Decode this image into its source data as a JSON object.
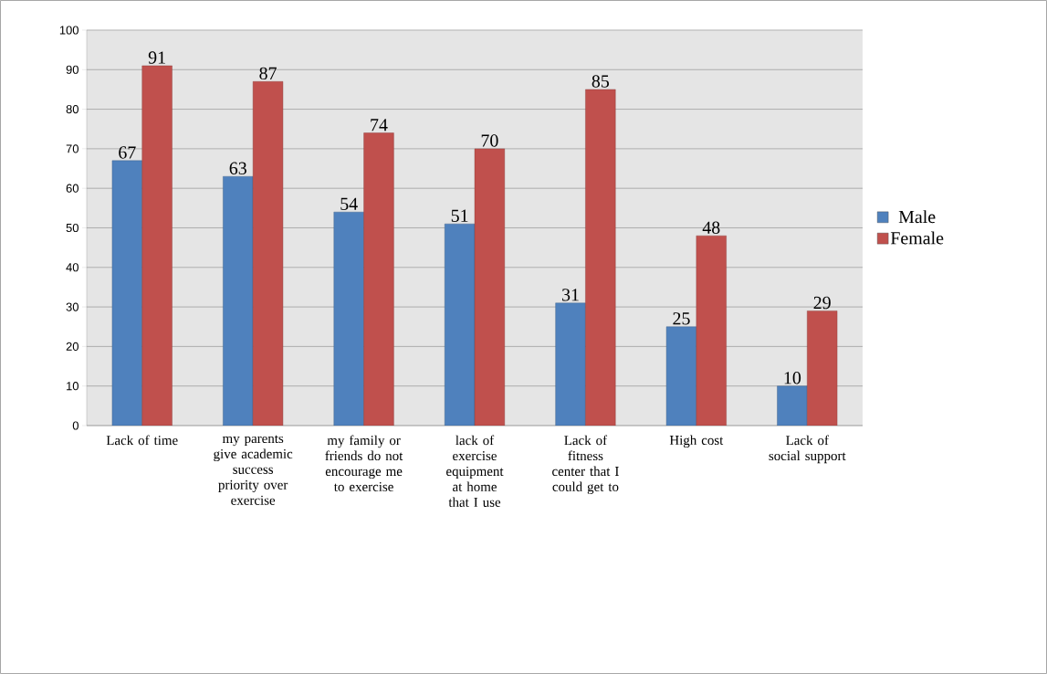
{
  "chart_data": {
    "type": "bar",
    "categories": [
      "Lack of time",
      "my parents give academic success priority over exercise",
      "my family or friends do not encourage me to exercise",
      "lack of exercise equipment at home that I use",
      "Lack of fitness center that I could get to",
      "High cost",
      "Lack of social support"
    ],
    "series": [
      {
        "name": "Male",
        "color": "#4f81bd",
        "values": [
          67,
          63,
          54,
          51,
          31,
          25,
          10
        ]
      },
      {
        "name": "Female",
        "color": "#c0504d",
        "values": [
          91,
          87,
          74,
          70,
          85,
          48,
          29
        ]
      }
    ],
    "ylim": [
      0,
      100
    ],
    "yticks": [
      0,
      10,
      20,
      30,
      40,
      50,
      60,
      70,
      80,
      90,
      100
    ],
    "grid": "y",
    "legend": "right",
    "data_labels": true
  }
}
